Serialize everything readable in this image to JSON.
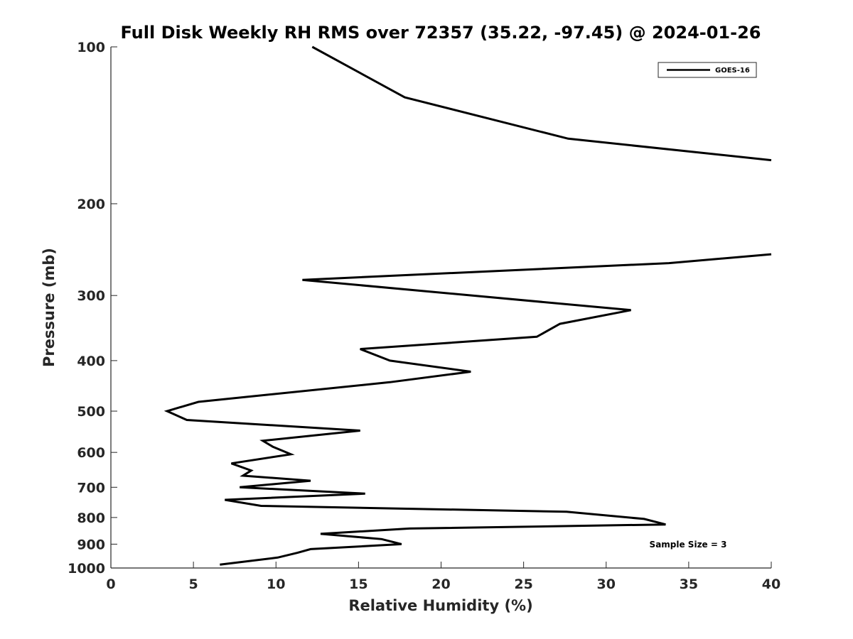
{
  "chart_data": {
    "type": "line",
    "title": "Full Disk Weekly RH RMS over 72357 (35.22, -97.45) @ 2024-01-26",
    "xlabel": "Relative Humidity (%)",
    "ylabel": "Pressure (mb)",
    "xlim": [
      0,
      40
    ],
    "ylim": [
      100,
      1000
    ],
    "y_scale": "log",
    "y_reversed": true,
    "grid": false,
    "x_ticks": [
      "0",
      "5",
      "10",
      "15",
      "20",
      "25",
      "30",
      "35",
      "40"
    ],
    "y_ticks": [
      "100",
      "200",
      "300",
      "400",
      "500",
      "600",
      "700",
      "800",
      "900",
      "1000"
    ],
    "legend": {
      "position": "top-right",
      "entries": [
        "GOES-16"
      ]
    },
    "annotation": "Sample Size = 3",
    "series": [
      {
        "name": "GOES-16",
        "color": "#000000",
        "x": [
          12.2,
          17.8,
          27.7,
          40.0
        ],
        "y": [
          100,
          125,
          150,
          165
        ]
      },
      {
        "name": "GOES-16",
        "color": "#000000",
        "x": [
          40.0,
          33.8,
          11.6,
          31.5,
          27.2,
          25.8,
          15.1,
          16.9,
          21.8,
          16.9,
          5.3,
          3.4,
          4.6,
          15.1,
          9.2,
          9.8,
          10.9,
          7.3,
          8.5,
          8.0,
          12.1,
          7.8,
          15.4,
          6.9,
          9.1,
          27.6,
          32.3,
          33.6,
          18.1,
          12.7,
          16.4,
          17.6,
          12.1,
          11.3,
          10.1,
          6.6
        ],
        "y": [
          250,
          260,
          280,
          320,
          340,
          360,
          380,
          400,
          420,
          440,
          480,
          500,
          520,
          545,
          570,
          585,
          605,
          630,
          650,
          665,
          680,
          700,
          720,
          740,
          760,
          780,
          805,
          825,
          840,
          860,
          880,
          900,
          920,
          935,
          955,
          985
        ]
      }
    ]
  }
}
